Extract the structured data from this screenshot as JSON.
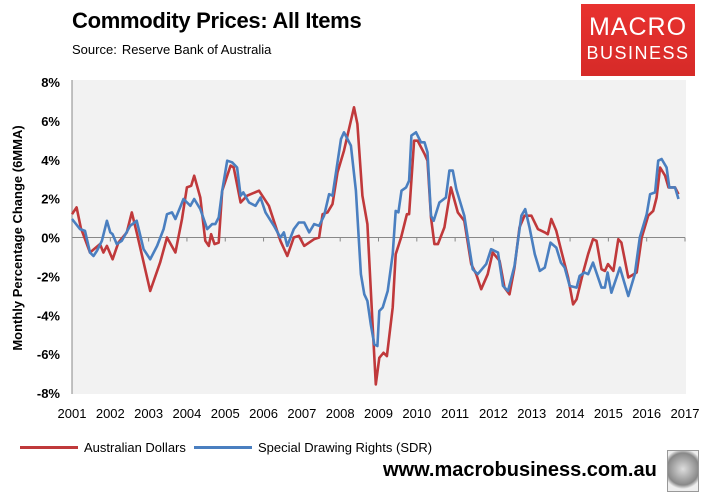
{
  "header": {
    "title": "Commodity Prices: All Items",
    "source_label": "Source:",
    "source": "Reserve Bank of Australia"
  },
  "logo": {
    "line1": "MACRO",
    "line2": "BUSINESS",
    "color": "#e0302d"
  },
  "footer": {
    "website": "www.macrobusiness.com.au"
  },
  "chart_data": {
    "type": "line",
    "title": "Commodity Prices: All Items",
    "ylabel": "Monthly Percentage Change (6MMA)",
    "xlabel": "",
    "xlim": [
      2001,
      2017
    ],
    "ylim": [
      -8,
      8
    ],
    "x_ticks": [
      "2001",
      "2002",
      "2003",
      "2004",
      "2005",
      "2006",
      "2007",
      "2008",
      "2009",
      "2010",
      "2011",
      "2012",
      "2013",
      "2014",
      "2015",
      "2016",
      "2017"
    ],
    "y_ticks": [
      "8%",
      "6%",
      "4%",
      "2%",
      "0%",
      "-2%",
      "-4%",
      "-6%",
      "-8%"
    ],
    "y_tick_values": [
      8,
      6,
      4,
      2,
      0,
      -2,
      -4,
      -6,
      -8
    ],
    "grid": false,
    "legend": "bottom",
    "series": [
      {
        "name": "Australian Dollars",
        "color": "#c0393b",
        "points": [
          [
            2001.0,
            1.2
          ],
          [
            2001.12,
            1.55
          ],
          [
            2001.23,
            0.5
          ],
          [
            2001.47,
            -0.77
          ],
          [
            2001.73,
            -0.34
          ],
          [
            2001.82,
            -0.77
          ],
          [
            2001.91,
            -0.43
          ],
          [
            2002.06,
            -1.12
          ],
          [
            2002.21,
            -0.26
          ],
          [
            2002.43,
            0.26
          ],
          [
            2002.56,
            1.29
          ],
          [
            2002.69,
            0.26
          ],
          [
            2003.04,
            -2.75
          ],
          [
            2003.3,
            -1.29
          ],
          [
            2003.48,
            0
          ],
          [
            2003.7,
            -0.77
          ],
          [
            2003.87,
            0.95
          ],
          [
            2004.0,
            2.58
          ],
          [
            2004.11,
            2.66
          ],
          [
            2004.19,
            3.18
          ],
          [
            2004.35,
            2.06
          ],
          [
            2004.48,
            -0.17
          ],
          [
            2004.57,
            -0.43
          ],
          [
            2004.63,
            0.17
          ],
          [
            2004.72,
            -0.34
          ],
          [
            2004.83,
            -0.26
          ],
          [
            2004.92,
            2.41
          ],
          [
            2005.14,
            3.7
          ],
          [
            2005.22,
            3.6
          ],
          [
            2005.4,
            1.8
          ],
          [
            2005.57,
            2.15
          ],
          [
            2005.88,
            2.41
          ],
          [
            2006.14,
            1.63
          ],
          [
            2006.44,
            -0.17
          ],
          [
            2006.62,
            -0.95
          ],
          [
            2006.79,
            0
          ],
          [
            2006.92,
            0.09
          ],
          [
            2007.06,
            -0.43
          ],
          [
            2007.32,
            -0.09
          ],
          [
            2007.45,
            0
          ],
          [
            2007.54,
            1.2
          ],
          [
            2007.67,
            1.29
          ],
          [
            2007.8,
            1.72
          ],
          [
            2007.93,
            3.35
          ],
          [
            2008.1,
            4.47
          ],
          [
            2008.36,
            6.7
          ],
          [
            2008.45,
            5.84
          ],
          [
            2008.58,
            2.15
          ],
          [
            2008.71,
            0.69
          ],
          [
            2008.84,
            -4.3
          ],
          [
            2008.93,
            -7.56
          ],
          [
            2009.02,
            -6.19
          ],
          [
            2009.13,
            -5.93
          ],
          [
            2009.22,
            -6.1
          ],
          [
            2009.37,
            -3.6
          ],
          [
            2009.45,
            -0.86
          ],
          [
            2009.59,
            0
          ],
          [
            2009.74,
            1.2
          ],
          [
            2009.8,
            1.2
          ],
          [
            2009.93,
            4.98
          ],
          [
            2010.02,
            4.98
          ],
          [
            2010.2,
            4.3
          ],
          [
            2010.28,
            3.95
          ],
          [
            2010.37,
            1.03
          ],
          [
            2010.46,
            -0.34
          ],
          [
            2010.55,
            -0.34
          ],
          [
            2010.72,
            0.52
          ],
          [
            2010.89,
            2.58
          ],
          [
            2011.07,
            1.29
          ],
          [
            2011.24,
            0.86
          ],
          [
            2011.42,
            -1.37
          ],
          [
            2011.55,
            -1.89
          ],
          [
            2011.68,
            -2.66
          ],
          [
            2011.85,
            -1.89
          ],
          [
            2011.98,
            -0.77
          ],
          [
            2012.16,
            -1.2
          ],
          [
            2012.29,
            -2.58
          ],
          [
            2012.42,
            -2.92
          ],
          [
            2012.55,
            -1.55
          ],
          [
            2012.68,
            0.52
          ],
          [
            2012.81,
            1.12
          ],
          [
            2012.99,
            1.12
          ],
          [
            2013.16,
            0.43
          ],
          [
            2013.34,
            0.26
          ],
          [
            2013.42,
            0.17
          ],
          [
            2013.51,
            0.95
          ],
          [
            2013.64,
            0.34
          ],
          [
            2013.77,
            -0.69
          ],
          [
            2013.95,
            -2.06
          ],
          [
            2014.08,
            -3.44
          ],
          [
            2014.17,
            -3.18
          ],
          [
            2014.34,
            -1.8
          ],
          [
            2014.47,
            -0.86
          ],
          [
            2014.6,
            -0.09
          ],
          [
            2014.69,
            -0.17
          ],
          [
            2014.82,
            -1.63
          ],
          [
            2014.91,
            -1.72
          ],
          [
            2014.99,
            -1.37
          ],
          [
            2015.13,
            -1.72
          ],
          [
            2015.26,
            -0.09
          ],
          [
            2015.34,
            -0.26
          ],
          [
            2015.52,
            -2.06
          ],
          [
            2015.74,
            -1.8
          ],
          [
            2015.87,
            0
          ],
          [
            2016.04,
            1.12
          ],
          [
            2016.17,
            1.37
          ],
          [
            2016.26,
            2.06
          ],
          [
            2016.35,
            3.6
          ],
          [
            2016.48,
            3.18
          ],
          [
            2016.57,
            2.58
          ],
          [
            2016.74,
            2.58
          ],
          [
            2016.83,
            2.23
          ]
        ]
      },
      {
        "name": "Special Drawing Rights (SDR)",
        "color": "#4a7fc0",
        "points": [
          [
            2001.0,
            0.95
          ],
          [
            2001.21,
            0.43
          ],
          [
            2001.34,
            0.34
          ],
          [
            2001.47,
            -0.77
          ],
          [
            2001.56,
            -0.95
          ],
          [
            2001.65,
            -0.69
          ],
          [
            2001.78,
            -0.17
          ],
          [
            2001.91,
            0.86
          ],
          [
            2002.0,
            0.26
          ],
          [
            2002.06,
            0.17
          ],
          [
            2002.17,
            -0.34
          ],
          [
            2002.3,
            -0.17
          ],
          [
            2002.52,
            0.6
          ],
          [
            2002.69,
            0.86
          ],
          [
            2002.87,
            -0.6
          ],
          [
            2003.04,
            -1.12
          ],
          [
            2003.22,
            -0.43
          ],
          [
            2003.39,
            0.43
          ],
          [
            2003.48,
            1.2
          ],
          [
            2003.61,
            1.29
          ],
          [
            2003.7,
            0.95
          ],
          [
            2003.91,
            1.98
          ],
          [
            2004.09,
            1.63
          ],
          [
            2004.19,
            1.98
          ],
          [
            2004.35,
            1.46
          ],
          [
            2004.53,
            0.43
          ],
          [
            2004.66,
            0.69
          ],
          [
            2004.74,
            0.69
          ],
          [
            2004.83,
            1.03
          ],
          [
            2004.92,
            2.41
          ],
          [
            2005.05,
            3.95
          ],
          [
            2005.18,
            3.87
          ],
          [
            2005.31,
            3.6
          ],
          [
            2005.4,
            2.15
          ],
          [
            2005.47,
            2.32
          ],
          [
            2005.62,
            1.8
          ],
          [
            2005.79,
            1.63
          ],
          [
            2005.92,
            2.06
          ],
          [
            2006.05,
            1.29
          ],
          [
            2006.27,
            0.6
          ],
          [
            2006.44,
            0
          ],
          [
            2006.53,
            0.26
          ],
          [
            2006.62,
            -0.43
          ],
          [
            2006.79,
            0.43
          ],
          [
            2006.92,
            0.77
          ],
          [
            2007.06,
            0.77
          ],
          [
            2007.19,
            0.26
          ],
          [
            2007.32,
            0.69
          ],
          [
            2007.45,
            0.6
          ],
          [
            2007.58,
            1.12
          ],
          [
            2007.71,
            2.23
          ],
          [
            2007.8,
            2.15
          ],
          [
            2008.02,
            5.07
          ],
          [
            2008.1,
            5.41
          ],
          [
            2008.28,
            4.73
          ],
          [
            2008.41,
            2.41
          ],
          [
            2008.54,
            -1.89
          ],
          [
            2008.63,
            -2.92
          ],
          [
            2008.71,
            -3.26
          ],
          [
            2008.8,
            -4.47
          ],
          [
            2008.89,
            -5.5
          ],
          [
            2008.97,
            -5.58
          ],
          [
            2009.02,
            -3.78
          ],
          [
            2009.11,
            -3.6
          ],
          [
            2009.24,
            -2.75
          ],
          [
            2009.37,
            -0.86
          ],
          [
            2009.45,
            1.37
          ],
          [
            2009.52,
            1.29
          ],
          [
            2009.6,
            2.41
          ],
          [
            2009.72,
            2.58
          ],
          [
            2009.8,
            2.92
          ],
          [
            2009.86,
            5.24
          ],
          [
            2009.98,
            5.41
          ],
          [
            2010.11,
            4.9
          ],
          [
            2010.2,
            4.9
          ],
          [
            2010.28,
            4.38
          ],
          [
            2010.37,
            1.12
          ],
          [
            2010.44,
            0.86
          ],
          [
            2010.59,
            1.8
          ],
          [
            2010.76,
            2.06
          ],
          [
            2010.85,
            3.44
          ],
          [
            2010.94,
            3.44
          ],
          [
            2011.03,
            2.49
          ],
          [
            2011.24,
            1.12
          ],
          [
            2011.37,
            -0.52
          ],
          [
            2011.46,
            -1.63
          ],
          [
            2011.59,
            -1.89
          ],
          [
            2011.81,
            -1.37
          ],
          [
            2011.94,
            -0.6
          ],
          [
            2012.12,
            -0.77
          ],
          [
            2012.25,
            -2.49
          ],
          [
            2012.38,
            -2.75
          ],
          [
            2012.55,
            -1.46
          ],
          [
            2012.73,
            1.12
          ],
          [
            2012.83,
            1.46
          ],
          [
            2012.94,
            0.52
          ],
          [
            2013.08,
            -0.86
          ],
          [
            2013.21,
            -1.72
          ],
          [
            2013.34,
            -1.55
          ],
          [
            2013.49,
            -0.26
          ],
          [
            2013.64,
            -0.52
          ],
          [
            2013.76,
            -1.29
          ],
          [
            2013.86,
            -1.55
          ],
          [
            2013.99,
            -2.49
          ],
          [
            2014.17,
            -2.58
          ],
          [
            2014.25,
            -1.98
          ],
          [
            2014.38,
            -1.8
          ],
          [
            2014.47,
            -1.89
          ],
          [
            2014.6,
            -1.29
          ],
          [
            2014.82,
            -2.58
          ],
          [
            2014.91,
            -2.58
          ],
          [
            2014.98,
            -1.8
          ],
          [
            2015.08,
            -2.84
          ],
          [
            2015.3,
            -1.55
          ],
          [
            2015.52,
            -3.01
          ],
          [
            2015.69,
            -1.89
          ],
          [
            2015.82,
            0
          ],
          [
            2016.0,
            1.2
          ],
          [
            2016.09,
            2.23
          ],
          [
            2016.22,
            2.32
          ],
          [
            2016.3,
            3.95
          ],
          [
            2016.39,
            4.04
          ],
          [
            2016.52,
            3.6
          ],
          [
            2016.59,
            2.58
          ],
          [
            2016.74,
            2.58
          ],
          [
            2016.83,
            1.98
          ]
        ]
      }
    ]
  }
}
